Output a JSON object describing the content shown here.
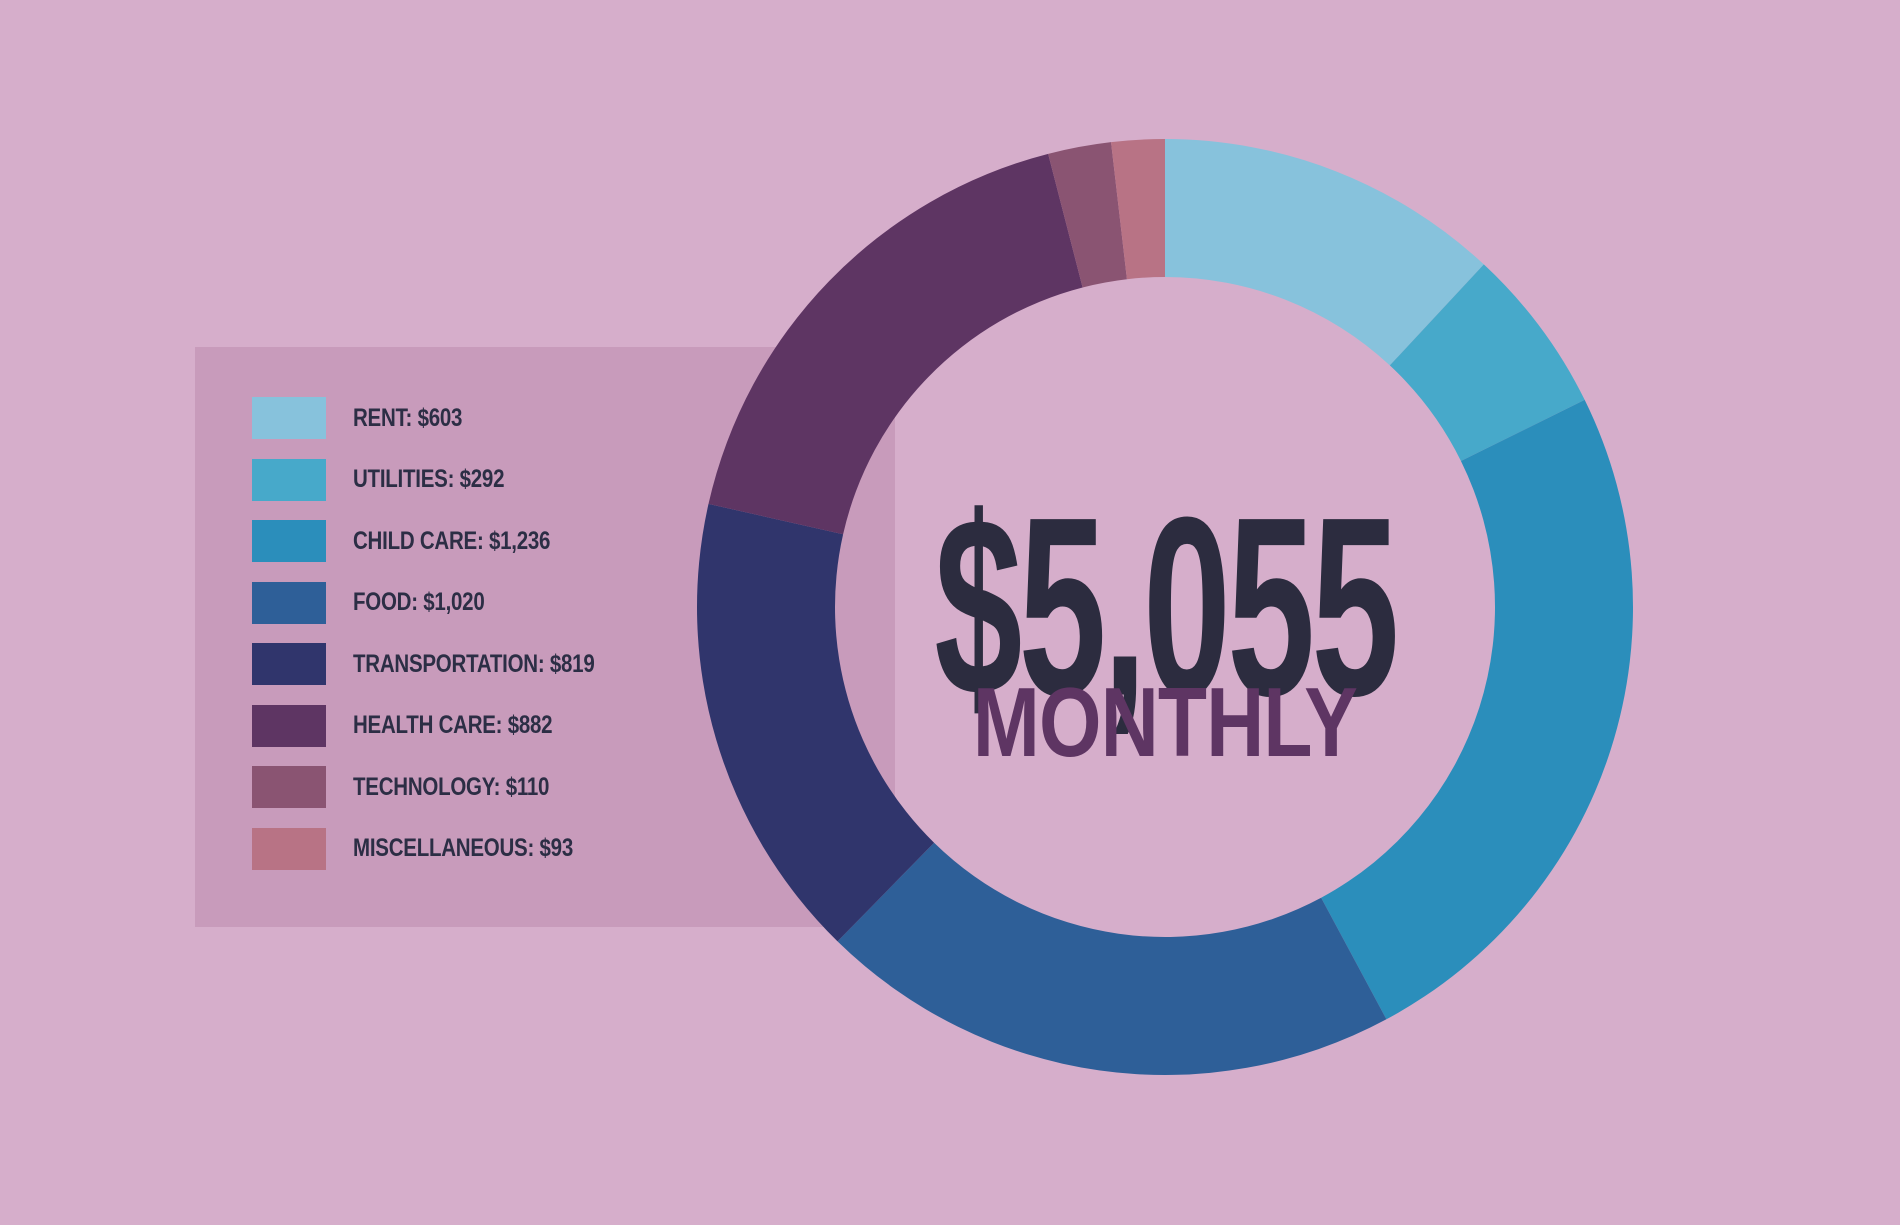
{
  "chart_data": {
    "type": "pie",
    "style": "donut",
    "total_label": "$5,055",
    "subtitle": "MONTHLY",
    "slices": [
      {
        "label": "RENT: $603",
        "value": 603,
        "color": "#87c2dc"
      },
      {
        "label": "UTILITIES: $292",
        "value": 292,
        "color": "#47a9ca"
      },
      {
        "label": "CHILD CARE: $1,236",
        "value": 1236,
        "color": "#2b8ebb"
      },
      {
        "label": "FOOD: $1,020",
        "value": 1020,
        "color": "#2e5f98"
      },
      {
        "label": "TRANSPORTATION: $819",
        "value": 819,
        "color": "#30356c"
      },
      {
        "label": "HEALTH CARE: $882",
        "value": 882,
        "color": "#5e3563"
      },
      {
        "label": "TECHNOLOGY: $110",
        "value": 110,
        "color": "#8a5472"
      },
      {
        "label": "MISCELLANEOUS: $93",
        "value": 93,
        "color": "#b87385"
      }
    ],
    "legend_position": "left",
    "background": "#d6aecb",
    "legend_background": "#c89bbb"
  }
}
